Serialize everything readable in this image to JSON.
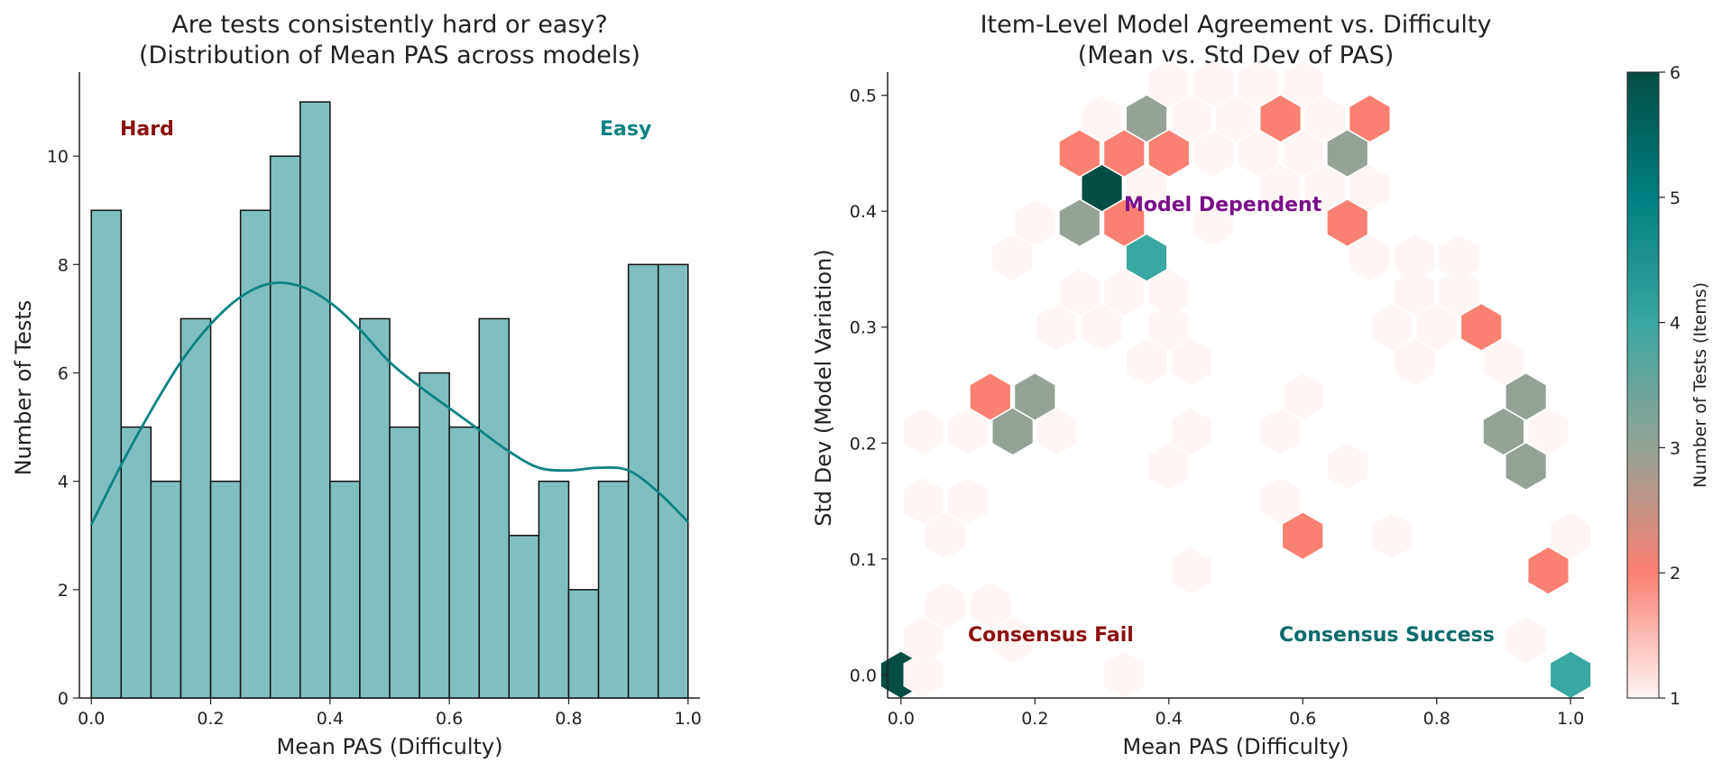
{
  "colors": {
    "bar_fill": "#80bfbf",
    "bar_edge": "#111111",
    "kde_line": "#0d8282",
    "hard": "#8b1010",
    "easy": "#0d8282",
    "model_dependent": "#7a0e8a",
    "consensus_fail": "#8b1010",
    "consensus_success": "#0b6b6b",
    "colormap": [
      "#fff5f5",
      "#fa8072",
      "#94a396",
      "#3aa7a0",
      "#017f80",
      "#034d43"
    ]
  },
  "chart_data": [
    {
      "type": "bar",
      "subtype": "histogram_with_kde",
      "title": "Are tests consistently hard or easy?",
      "subtitle": "(Distribution of Mean PAS across models)",
      "xlabel": "Mean PAS (Difficulty)",
      "ylabel": "Number of Tests",
      "xlim": [
        -0.02,
        1.02
      ],
      "ylim": [
        0,
        11.55
      ],
      "xticks": [
        "0.0",
        "0.2",
        "0.4",
        "0.6",
        "0.8",
        "1.0"
      ],
      "yticks": [
        "0",
        "2",
        "4",
        "6",
        "8",
        "10"
      ],
      "bin_edges": [
        0.0,
        0.05,
        0.1,
        0.15,
        0.2,
        0.25,
        0.3,
        0.35,
        0.4,
        0.45,
        0.5,
        0.55,
        0.6,
        0.65,
        0.7,
        0.75,
        0.8,
        0.85,
        0.9,
        0.95,
        1.0
      ],
      "values": [
        9,
        5,
        4,
        7,
        4,
        9,
        10,
        11,
        4,
        7,
        5,
        6,
        5,
        7,
        3,
        4,
        2,
        4,
        8,
        8
      ],
      "kde": {
        "x": [
          0.0,
          0.05,
          0.1,
          0.15,
          0.2,
          0.25,
          0.3,
          0.35,
          0.4,
          0.45,
          0.5,
          0.55,
          0.6,
          0.65,
          0.7,
          0.75,
          0.8,
          0.85,
          0.9,
          0.95,
          1.0
        ],
        "y": [
          3.2,
          4.3,
          5.3,
          6.2,
          6.9,
          7.4,
          7.65,
          7.6,
          7.3,
          6.8,
          6.2,
          5.75,
          5.35,
          4.95,
          4.55,
          4.25,
          4.2,
          4.25,
          4.2,
          3.8,
          3.25
        ]
      },
      "annotations": [
        {
          "text": "Hard",
          "color_key": "hard"
        },
        {
          "text": "Easy",
          "color_key": "easy"
        }
      ]
    },
    {
      "type": "hexbin",
      "title": "Item-Level Model Agreement vs. Difficulty",
      "subtitle": "(Mean vs. Std Dev of PAS)",
      "xlabel": "Mean PAS (Difficulty)",
      "ylabel": "Std Dev (Model Variation)",
      "xlim": [
        -0.02,
        1.02
      ],
      "ylim": [
        -0.02,
        0.52
      ],
      "xticks": [
        "0.0",
        "0.2",
        "0.4",
        "0.6",
        "0.8",
        "1.0"
      ],
      "yticks": [
        "0.0",
        "0.1",
        "0.2",
        "0.3",
        "0.4",
        "0.5"
      ],
      "colorbar": {
        "label": "Number of Tests (Items)",
        "min": 1,
        "max": 6,
        "ticks": [
          "1",
          "2",
          "3",
          "4",
          "5",
          "6"
        ]
      },
      "cells": [
        {
          "x": 0.0,
          "y": 0.0,
          "count": 6
        },
        {
          "x": 0.0333,
          "y": 0.0,
          "count": 1
        },
        {
          "x": 1.0,
          "y": 0.0,
          "count": 4
        },
        {
          "x": 0.3333,
          "y": 0.0,
          "count": 1
        },
        {
          "x": 0.0333,
          "y": 0.03,
          "count": 1
        },
        {
          "x": 0.1667,
          "y": 0.03,
          "count": 1
        },
        {
          "x": 0.9333,
          "y": 0.03,
          "count": 1
        },
        {
          "x": 0.0667,
          "y": 0.06,
          "count": 1
        },
        {
          "x": 0.1333,
          "y": 0.06,
          "count": 1
        },
        {
          "x": 0.4333,
          "y": 0.09,
          "count": 1
        },
        {
          "x": 0.9667,
          "y": 0.09,
          "count": 2
        },
        {
          "x": 1.0,
          "y": 0.12,
          "count": 1
        },
        {
          "x": 0.0667,
          "y": 0.12,
          "count": 1
        },
        {
          "x": 0.6,
          "y": 0.12,
          "count": 2
        },
        {
          "x": 0.7333,
          "y": 0.12,
          "count": 1
        },
        {
          "x": 0.0333,
          "y": 0.15,
          "count": 1
        },
        {
          "x": 0.1,
          "y": 0.15,
          "count": 1
        },
        {
          "x": 0.5667,
          "y": 0.15,
          "count": 1
        },
        {
          "x": 0.4,
          "y": 0.18,
          "count": 1
        },
        {
          "x": 0.6667,
          "y": 0.18,
          "count": 1
        },
        {
          "x": 0.9333,
          "y": 0.18,
          "count": 3
        },
        {
          "x": 0.0333,
          "y": 0.21,
          "count": 1
        },
        {
          "x": 0.1,
          "y": 0.21,
          "count": 1
        },
        {
          "x": 0.1667,
          "y": 0.21,
          "count": 3
        },
        {
          "x": 0.2333,
          "y": 0.21,
          "count": 1
        },
        {
          "x": 0.4333,
          "y": 0.21,
          "count": 1
        },
        {
          "x": 0.5667,
          "y": 0.21,
          "count": 1
        },
        {
          "x": 0.9,
          "y": 0.21,
          "count": 3
        },
        {
          "x": 0.9667,
          "y": 0.21,
          "count": 1
        },
        {
          "x": 0.1333,
          "y": 0.24,
          "count": 2
        },
        {
          "x": 0.2,
          "y": 0.24,
          "count": 3
        },
        {
          "x": 0.6,
          "y": 0.24,
          "count": 1
        },
        {
          "x": 0.9333,
          "y": 0.24,
          "count": 3
        },
        {
          "x": 0.3667,
          "y": 0.27,
          "count": 1
        },
        {
          "x": 0.4333,
          "y": 0.27,
          "count": 1
        },
        {
          "x": 0.7667,
          "y": 0.27,
          "count": 1
        },
        {
          "x": 0.9,
          "y": 0.27,
          "count": 1
        },
        {
          "x": 0.2333,
          "y": 0.3,
          "count": 1
        },
        {
          "x": 0.3,
          "y": 0.3,
          "count": 1
        },
        {
          "x": 0.4,
          "y": 0.3,
          "count": 1
        },
        {
          "x": 0.7333,
          "y": 0.3,
          "count": 1
        },
        {
          "x": 0.8,
          "y": 0.3,
          "count": 1
        },
        {
          "x": 0.8667,
          "y": 0.3,
          "count": 2
        },
        {
          "x": 0.2667,
          "y": 0.33,
          "count": 1
        },
        {
          "x": 0.3333,
          "y": 0.33,
          "count": 1
        },
        {
          "x": 0.4,
          "y": 0.33,
          "count": 1
        },
        {
          "x": 0.7667,
          "y": 0.33,
          "count": 1
        },
        {
          "x": 0.8333,
          "y": 0.33,
          "count": 1
        },
        {
          "x": 0.1667,
          "y": 0.36,
          "count": 1
        },
        {
          "x": 0.3667,
          "y": 0.36,
          "count": 4
        },
        {
          "x": 0.7,
          "y": 0.36,
          "count": 1
        },
        {
          "x": 0.7667,
          "y": 0.36,
          "count": 1
        },
        {
          "x": 0.8333,
          "y": 0.36,
          "count": 1
        },
        {
          "x": 0.2,
          "y": 0.39,
          "count": 1
        },
        {
          "x": 0.2667,
          "y": 0.39,
          "count": 3
        },
        {
          "x": 0.3333,
          "y": 0.39,
          "count": 2
        },
        {
          "x": 0.4667,
          "y": 0.39,
          "count": 1
        },
        {
          "x": 0.6667,
          "y": 0.39,
          "count": 2
        },
        {
          "x": 0.3,
          "y": 0.42,
          "count": 6
        },
        {
          "x": 0.3667,
          "y": 0.42,
          "count": 1
        },
        {
          "x": 0.5667,
          "y": 0.42,
          "count": 1
        },
        {
          "x": 0.6333,
          "y": 0.42,
          "count": 1
        },
        {
          "x": 0.7,
          "y": 0.42,
          "count": 1
        },
        {
          "x": 0.2667,
          "y": 0.45,
          "count": 2
        },
        {
          "x": 0.3333,
          "y": 0.45,
          "count": 2
        },
        {
          "x": 0.4,
          "y": 0.45,
          "count": 2
        },
        {
          "x": 0.4667,
          "y": 0.45,
          "count": 1
        },
        {
          "x": 0.5333,
          "y": 0.45,
          "count": 1
        },
        {
          "x": 0.6,
          "y": 0.45,
          "count": 1
        },
        {
          "x": 0.6667,
          "y": 0.45,
          "count": 3
        },
        {
          "x": 0.3,
          "y": 0.48,
          "count": 1
        },
        {
          "x": 0.3667,
          "y": 0.48,
          "count": 3
        },
        {
          "x": 0.4333,
          "y": 0.48,
          "count": 1
        },
        {
          "x": 0.5,
          "y": 0.48,
          "count": 1
        },
        {
          "x": 0.5667,
          "y": 0.48,
          "count": 2
        },
        {
          "x": 0.6333,
          "y": 0.48,
          "count": 1
        },
        {
          "x": 0.7,
          "y": 0.48,
          "count": 2
        },
        {
          "x": 0.4,
          "y": 0.51,
          "count": 1
        },
        {
          "x": 0.4667,
          "y": 0.51,
          "count": 1
        },
        {
          "x": 0.5333,
          "y": 0.51,
          "count": 1
        },
        {
          "x": 0.6,
          "y": 0.51,
          "count": 1
        }
      ],
      "annotations": [
        {
          "text": "Model Dependent",
          "color_key": "model_dependent"
        },
        {
          "text": "Consensus Fail",
          "color_key": "consensus_fail"
        },
        {
          "text": "Consensus Success",
          "color_key": "consensus_success"
        }
      ]
    }
  ]
}
